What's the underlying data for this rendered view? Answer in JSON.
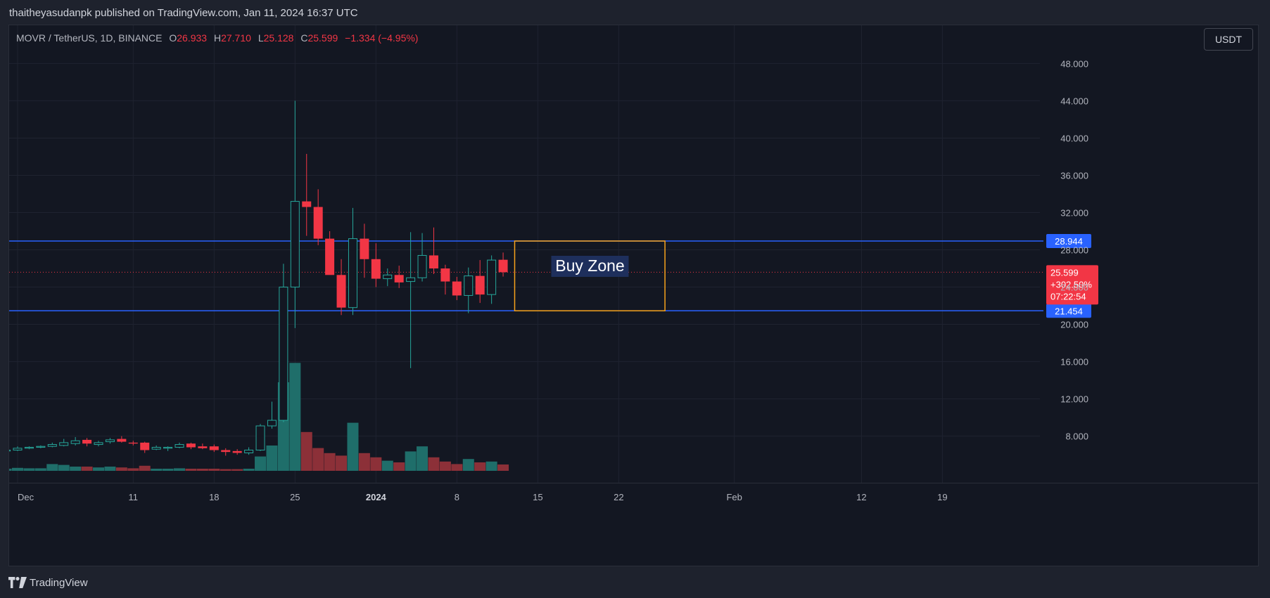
{
  "header": {
    "published": "thaitheyasudanpk published on TradingView.com, Jan 11, 2024 16:37 UTC"
  },
  "legend": {
    "symbol": "MOVR / TetherUS, 1D, BINANCE",
    "open_label": "O",
    "open": "26.933",
    "high_label": "H",
    "high": "27.710",
    "low_label": "L",
    "low": "25.128",
    "close_label": "C",
    "close": "25.599",
    "change": "−1.334 (−4.95%)"
  },
  "currency": "USDT",
  "footer": {
    "logo_icon": "tradingview-logo-icon",
    "brand": "TradingView"
  },
  "colors": {
    "up": "#26a69a",
    "down": "#f23645",
    "vol_up": "#1f6e6a",
    "vol_down": "#8c3038",
    "level_line": "#2962ff",
    "zone_border": "#f7a21b",
    "zone_label_bg": "#1e2f5c",
    "price_badge": "#f23645"
  },
  "chart_data": {
    "type": "candlestick",
    "y_ticks": [
      "8.000",
      "12.000",
      "16.000",
      "20.000",
      "24.000",
      "28.000",
      "32.000",
      "36.000",
      "40.000",
      "44.000",
      "48.000"
    ],
    "x_ticks": [
      {
        "label": "Dec",
        "date": "2023-12-01",
        "bold": false
      },
      {
        "label": "11",
        "date": "2023-12-11",
        "bold": false
      },
      {
        "label": "18",
        "date": "2023-12-18",
        "bold": false
      },
      {
        "label": "25",
        "date": "2023-12-25",
        "bold": false
      },
      {
        "label": "2024",
        "date": "2024-01-01",
        "bold": true
      },
      {
        "label": "8",
        "date": "2024-01-08",
        "bold": false
      },
      {
        "label": "15",
        "date": "2024-01-15",
        "bold": false
      },
      {
        "label": "22",
        "date": "2024-01-22",
        "bold": false
      },
      {
        "label": "Feb",
        "date": "2024-02-01",
        "bold": false
      },
      {
        "label": "12",
        "date": "2024-02-12",
        "bold": false
      },
      {
        "label": "19",
        "date": "2024-02-19",
        "bold": false
      }
    ],
    "candles": [
      {
        "d": "2023-11-30",
        "o": 6.4,
        "h": 6.6,
        "l": 6.3,
        "c": 6.5,
        "v": 0.25
      },
      {
        "d": "2023-12-01",
        "o": 6.5,
        "h": 6.9,
        "l": 6.4,
        "c": 6.7,
        "v": 0.35
      },
      {
        "d": "2023-12-02",
        "o": 6.7,
        "h": 6.9,
        "l": 6.6,
        "c": 6.8,
        "v": 0.3
      },
      {
        "d": "2023-12-03",
        "o": 6.8,
        "h": 7.0,
        "l": 6.7,
        "c": 6.9,
        "v": 0.3
      },
      {
        "d": "2023-12-04",
        "o": 6.9,
        "h": 7.3,
        "l": 6.8,
        "c": 7.1,
        "v": 0.8
      },
      {
        "d": "2023-12-05",
        "o": 7.0,
        "h": 7.7,
        "l": 6.9,
        "c": 7.3,
        "v": 0.7
      },
      {
        "d": "2023-12-06",
        "o": 7.2,
        "h": 7.9,
        "l": 7.0,
        "c": 7.5,
        "v": 0.5
      },
      {
        "d": "2023-12-07",
        "o": 7.6,
        "h": 7.8,
        "l": 6.9,
        "c": 7.2,
        "v": 0.5
      },
      {
        "d": "2023-12-08",
        "o": 7.1,
        "h": 7.5,
        "l": 6.9,
        "c": 7.3,
        "v": 0.4
      },
      {
        "d": "2023-12-09",
        "o": 7.4,
        "h": 7.8,
        "l": 7.2,
        "c": 7.6,
        "v": 0.5
      },
      {
        "d": "2023-12-10",
        "o": 7.7,
        "h": 8.0,
        "l": 7.3,
        "c": 7.4,
        "v": 0.4
      },
      {
        "d": "2023-12-11",
        "o": 7.3,
        "h": 7.5,
        "l": 7.0,
        "c": 7.2,
        "v": 0.3
      },
      {
        "d": "2023-12-12",
        "o": 7.3,
        "h": 7.4,
        "l": 6.2,
        "c": 6.5,
        "v": 0.6
      },
      {
        "d": "2023-12-13",
        "o": 6.6,
        "h": 7.0,
        "l": 6.5,
        "c": 6.8,
        "v": 0.25
      },
      {
        "d": "2023-12-14",
        "o": 6.7,
        "h": 6.9,
        "l": 6.4,
        "c": 6.8,
        "v": 0.25
      },
      {
        "d": "2023-12-15",
        "o": 6.8,
        "h": 7.3,
        "l": 6.7,
        "c": 7.1,
        "v": 0.3
      },
      {
        "d": "2023-12-16",
        "o": 7.2,
        "h": 7.3,
        "l": 6.6,
        "c": 6.8,
        "v": 0.25
      },
      {
        "d": "2023-12-17",
        "o": 6.9,
        "h": 7.2,
        "l": 6.6,
        "c": 6.7,
        "v": 0.25
      },
      {
        "d": "2023-12-18",
        "o": 6.9,
        "h": 7.1,
        "l": 6.3,
        "c": 6.5,
        "v": 0.25
      },
      {
        "d": "2023-12-19",
        "o": 6.5,
        "h": 6.7,
        "l": 5.9,
        "c": 6.3,
        "v": 0.2
      },
      {
        "d": "2023-12-20",
        "o": 6.4,
        "h": 6.6,
        "l": 6.0,
        "c": 6.2,
        "v": 0.2
      },
      {
        "d": "2023-12-21",
        "o": 6.2,
        "h": 6.8,
        "l": 6.0,
        "c": 6.5,
        "v": 0.25
      },
      {
        "d": "2023-12-22",
        "o": 6.5,
        "h": 9.3,
        "l": 6.4,
        "c": 9.1,
        "v": 1.7
      },
      {
        "d": "2023-12-23",
        "o": 9.1,
        "h": 11.7,
        "l": 8.8,
        "c": 9.7,
        "v": 3.0
      },
      {
        "d": "2023-12-24",
        "o": 9.7,
        "h": 26.5,
        "l": 9.5,
        "c": 24.0,
        "v": 10.5
      },
      {
        "d": "2023-12-25",
        "o": 24.0,
        "h": 44.0,
        "l": 19.6,
        "c": 33.2,
        "v": 12.8
      },
      {
        "d": "2023-12-26",
        "o": 33.2,
        "h": 38.3,
        "l": 29.5,
        "c": 32.6,
        "v": 4.6
      },
      {
        "d": "2023-12-27",
        "o": 32.6,
        "h": 34.5,
        "l": 28.5,
        "c": 29.2,
        "v": 2.7
      },
      {
        "d": "2023-12-28",
        "o": 29.2,
        "h": 30.0,
        "l": 25.5,
        "c": 25.3,
        "v": 2.1
      },
      {
        "d": "2023-12-29",
        "o": 25.3,
        "h": 27.0,
        "l": 21.0,
        "c": 21.8,
        "v": 1.8
      },
      {
        "d": "2023-12-30",
        "o": 21.8,
        "h": 32.5,
        "l": 21.0,
        "c": 29.2,
        "v": 5.7
      },
      {
        "d": "2023-12-31",
        "o": 29.2,
        "h": 30.8,
        "l": 25.0,
        "c": 27.0,
        "v": 2.1
      },
      {
        "d": "2024-01-01",
        "o": 27.0,
        "h": 28.7,
        "l": 24.0,
        "c": 24.9,
        "v": 1.6
      },
      {
        "d": "2024-01-02",
        "o": 24.9,
        "h": 26.0,
        "l": 24.1,
        "c": 25.3,
        "v": 1.2
      },
      {
        "d": "2024-01-03",
        "o": 25.3,
        "h": 26.3,
        "l": 23.9,
        "c": 24.5,
        "v": 1.0
      },
      {
        "d": "2024-01-04",
        "o": 24.6,
        "h": 29.9,
        "l": 15.3,
        "c": 25.0,
        "v": 2.3
      },
      {
        "d": "2024-01-05",
        "o": 25.0,
        "h": 29.8,
        "l": 24.6,
        "c": 27.4,
        "v": 2.9
      },
      {
        "d": "2024-01-06",
        "o": 27.4,
        "h": 30.4,
        "l": 25.4,
        "c": 26.0,
        "v": 1.6
      },
      {
        "d": "2024-01-07",
        "o": 26.0,
        "h": 26.4,
        "l": 23.2,
        "c": 24.6,
        "v": 1.1
      },
      {
        "d": "2024-01-08",
        "o": 24.6,
        "h": 25.1,
        "l": 22.6,
        "c": 23.1,
        "v": 0.8
      },
      {
        "d": "2024-01-09",
        "o": 23.1,
        "h": 26.1,
        "l": 21.2,
        "c": 25.2,
        "v": 1.4
      },
      {
        "d": "2024-01-10",
        "o": 25.2,
        "h": 26.9,
        "l": 22.3,
        "c": 23.2,
        "v": 1.0
      },
      {
        "d": "2024-01-11",
        "o": 23.2,
        "h": 27.4,
        "l": 22.2,
        "c": 26.9,
        "v": 1.1
      },
      {
        "d": "2024-01-12",
        "o": 26.933,
        "h": 27.71,
        "l": 25.128,
        "c": 25.599,
        "v": 0.75
      }
    ],
    "levels": [
      {
        "value": 28.944,
        "label": "28.944"
      },
      {
        "value": 21.454,
        "label": "21.454"
      }
    ],
    "last_price": {
      "value": 25.599,
      "label": "25.599",
      "change_pct": "+302.50%",
      "countdown": "07:22:54"
    },
    "zone": {
      "label": "Buy Zone",
      "from_date": "2024-01-13",
      "to_date": "2024-01-26",
      "top": 28.944,
      "bottom": 21.454
    },
    "y_range": [
      4.2,
      51.5
    ],
    "grid": true
  }
}
